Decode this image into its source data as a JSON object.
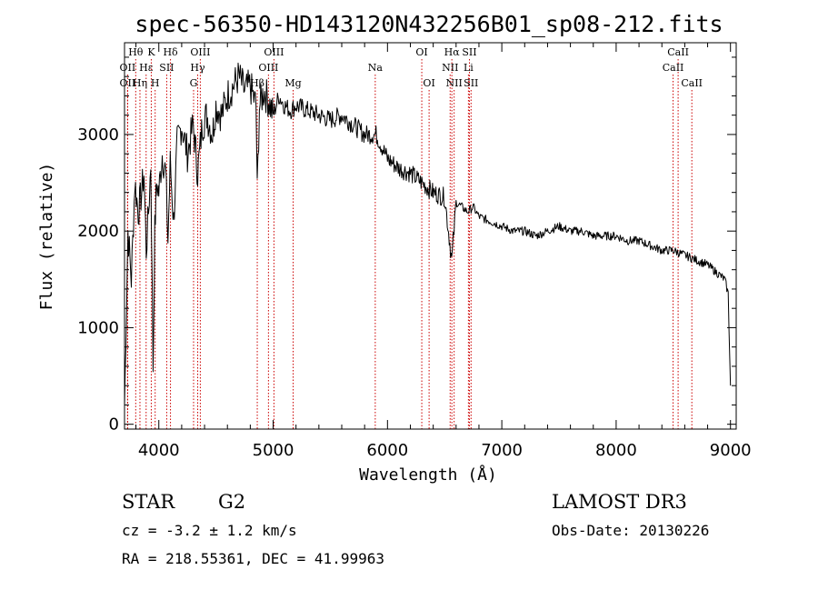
{
  "chart_data": {
    "type": "line",
    "title": "spec-56350-HD143120N432256B01_sp08-212.fits",
    "xlabel": "Wavelength (Å)",
    "ylabel": "Flux (relative)",
    "xlim": [
      3700,
      9050
    ],
    "ylim": [
      -50,
      3950
    ],
    "x_ticks": [
      4000,
      5000,
      6000,
      7000,
      8000,
      9000
    ],
    "y_ticks": [
      0,
      1000,
      2000,
      3000
    ],
    "series": [
      {
        "name": "flux",
        "x": [
          3700,
          3730,
          3760,
          3790,
          3820,
          3850,
          3870,
          3890,
          3910,
          3930,
          3950,
          3965,
          3980,
          4000,
          4030,
          4060,
          4080,
          4100,
          4130,
          4160,
          4200,
          4250,
          4300,
          4340,
          4380,
          4420,
          4470,
          4500,
          4550,
          4600,
          4650,
          4700,
          4750,
          4800,
          4850,
          4861,
          4880,
          4920,
          4960,
          5000,
          5050,
          5100,
          5150,
          5200,
          5300,
          5400,
          5500,
          5600,
          5700,
          5800,
          5900,
          6000,
          6100,
          6200,
          6300,
          6400,
          6500,
          6563,
          6600,
          6650,
          6700,
          6750,
          6800,
          6900,
          7000,
          7100,
          7200,
          7300,
          7400,
          7500,
          7600,
          7700,
          7800,
          7900,
          8000,
          8100,
          8200,
          8300,
          8400,
          8500,
          8600,
          8700,
          8800,
          8900,
          8950,
          8980,
          9000
        ],
        "values": [
          200,
          2000,
          1500,
          2500,
          2200,
          2400,
          2600,
          1800,
          2200,
          2700,
          600,
          2000,
          2500,
          2400,
          2800,
          2600,
          1900,
          2700,
          2100,
          2900,
          3100,
          2800,
          3100,
          2600,
          3100,
          3200,
          3000,
          3300,
          3200,
          3400,
          3500,
          3600,
          3450,
          3500,
          3300,
          2400,
          3300,
          3450,
          3350,
          3200,
          3400,
          3300,
          3250,
          3300,
          3250,
          3200,
          3150,
          3200,
          3100,
          3000,
          3000,
          2750,
          2650,
          2600,
          2500,
          2400,
          2350,
          1700,
          2300,
          2250,
          2200,
          2250,
          2150,
          2100,
          2050,
          2000,
          2000,
          1950,
          2000,
          2050,
          2000,
          2000,
          1950,
          1950,
          1950,
          1900,
          1900,
          1850,
          1800,
          1800,
          1750,
          1700,
          1650,
          1550,
          1500,
          1350,
          400
        ]
      }
    ],
    "spectral_lines": [
      {
        "label": "Hθ",
        "x": 3798,
        "row": 0
      },
      {
        "label": "OII",
        "x": 3727,
        "row": 1
      },
      {
        "label": "OII",
        "x": 3727,
        "row": 2
      },
      {
        "label": "Hε",
        "x": 3889,
        "row": 1
      },
      {
        "label": "K",
        "x": 3934,
        "row": 0
      },
      {
        "label": "H",
        "x": 3968,
        "row": 2
      },
      {
        "label": "Hη",
        "x": 3835,
        "row": 2
      },
      {
        "label": "SII",
        "x": 4069,
        "row": 1
      },
      {
        "label": "Hδ",
        "x": 4102,
        "row": 0
      },
      {
        "label": "OIII",
        "x": 4363,
        "row": 0
      },
      {
        "label": "Hγ",
        "x": 4340,
        "row": 1
      },
      {
        "label": "G",
        "x": 4304,
        "row": 2
      },
      {
        "label": "Hβ",
        "x": 4861,
        "row": 2
      },
      {
        "label": "OIII",
        "x": 4959,
        "row": 1
      },
      {
        "label": "OIII",
        "x": 5007,
        "row": 0
      },
      {
        "label": "Mg",
        "x": 5175,
        "row": 2
      },
      {
        "label": "Na",
        "x": 5893,
        "row": 1
      },
      {
        "label": "OI",
        "x": 6300,
        "row": 0
      },
      {
        "label": "OI",
        "x": 6364,
        "row": 2
      },
      {
        "label": "Hα",
        "x": 6563,
        "row": 0
      },
      {
        "label": "NII",
        "x": 6548,
        "row": 1
      },
      {
        "label": "NII",
        "x": 6583,
        "row": 2
      },
      {
        "label": "SII",
        "x": 6717,
        "row": 0
      },
      {
        "label": "Li",
        "x": 6708,
        "row": 1
      },
      {
        "label": "SII",
        "x": 6731,
        "row": 2
      },
      {
        "label": "CaII",
        "x": 8542,
        "row": 0
      },
      {
        "label": "CaII",
        "x": 8498,
        "row": 1
      },
      {
        "label": "CaII",
        "x": 8662,
        "row": 2
      }
    ]
  },
  "info": {
    "object_class": "STAR",
    "subclass": "G2",
    "survey": "LAMOST DR3",
    "cz": "cz = -3.2 ± 1.2 km/s",
    "obs_date": "Obs-Date: 20130226",
    "coords": "RA = 218.55361, DEC =  41.99963"
  },
  "colors": {
    "axis": "#000000",
    "spectrum": "#000000",
    "line_marker": "#cc0000"
  }
}
